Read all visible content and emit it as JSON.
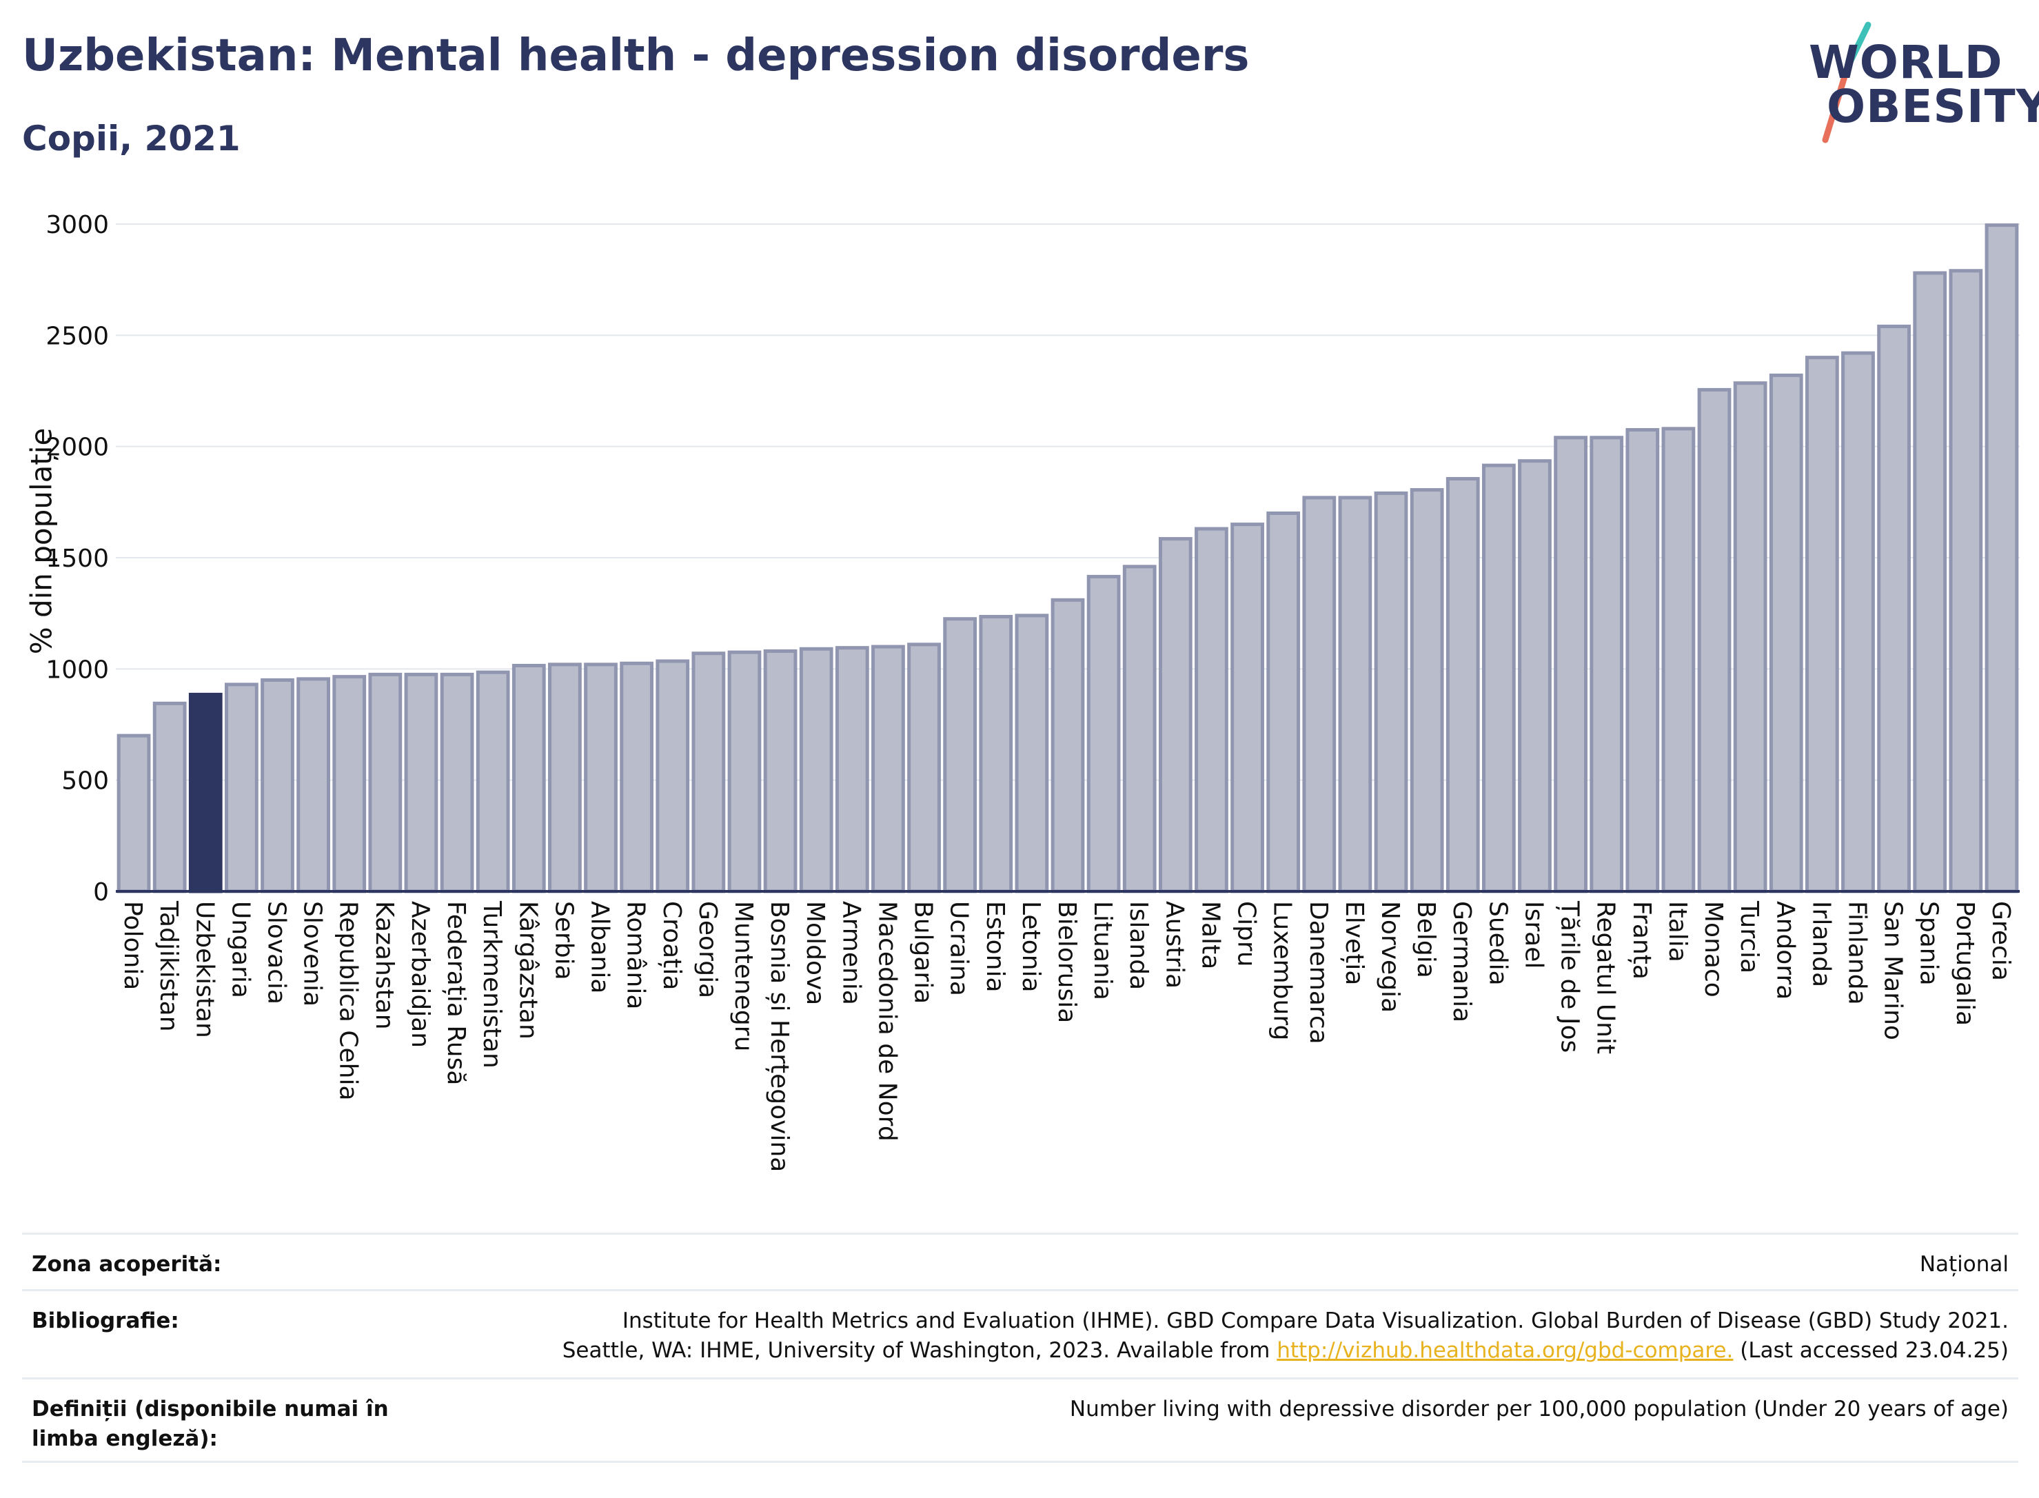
{
  "header": {
    "title": "Uzbekistan: Mental health - depression disorders",
    "subtitle": "Copii, 2021"
  },
  "logo": {
    "line1": "WORLD",
    "line2": "OBESITY",
    "colors": {
      "text": "#2d3561",
      "slash_top": "#3cc0b8",
      "slash_bottom": "#e8705a"
    }
  },
  "chart_data": {
    "type": "bar",
    "title": "",
    "xlabel": "",
    "ylabel": "% din populație",
    "ylim": [
      0,
      3000
    ],
    "yticks": [
      0,
      500,
      1000,
      1500,
      2000,
      2500,
      3000
    ],
    "grid": true,
    "highlight": "Uzbekistan",
    "colors": {
      "bar": "#b9bccb",
      "bar_edge": "#9095b0",
      "highlight": "#2d3561",
      "axis": "#2d3561",
      "grid": "#e4e7ec"
    },
    "categories": [
      "Polonia",
      "Tadjikistan",
      "Uzbekistan",
      "Ungaria",
      "Slovacia",
      "Slovenia",
      "Republica Cehia",
      "Kazahstan",
      "Azerbaidjan",
      "Federația Rusă",
      "Turkmenistan",
      "Kârgâzstan",
      "Serbia",
      "Albania",
      "România",
      "Croația",
      "Georgia",
      "Muntenegru",
      "Bosnia și Herțegovina",
      "Moldova",
      "Armenia",
      "Macedonia de Nord",
      "Bulgaria",
      "Ucraina",
      "Estonia",
      "Letonia",
      "Bielorusia",
      "Lituania",
      "Islanda",
      "Austria",
      "Malta",
      "Cipru",
      "Luxemburg",
      "Danemarca",
      "Elveția",
      "Norvegia",
      "Belgia",
      "Germania",
      "Suedia",
      "Israel",
      "Țările de Jos",
      "Regatul Unit",
      "Franța",
      "Italia",
      "Monaco",
      "Turcia",
      "Andorra",
      "Irlanda",
      "Finlanda",
      "San Marino",
      "Spania",
      "Portugalia",
      "Grecia"
    ],
    "values": [
      700,
      845,
      885,
      930,
      950,
      955,
      965,
      975,
      975,
      975,
      985,
      1015,
      1020,
      1020,
      1025,
      1035,
      1070,
      1075,
      1080,
      1090,
      1095,
      1100,
      1110,
      1225,
      1235,
      1240,
      1310,
      1415,
      1460,
      1585,
      1630,
      1650,
      1700,
      1770,
      1770,
      1790,
      1805,
      1855,
      1915,
      1935,
      2040,
      2040,
      2075,
      2080,
      2255,
      2285,
      2320,
      2400,
      2420,
      2540,
      2780,
      2790,
      2995
    ]
  },
  "metadata": {
    "coverage_label": "Zona acoperită:",
    "coverage_value": "Național",
    "bibliography_label": "Bibliografie:",
    "bibliography_line1": "Institute for Health Metrics and Evaluation (IHME). GBD Compare Data Visualization. Global Burden of Disease (GBD) Study 2021.",
    "bibliography_line2_pre": "Seattle, WA: IHME, University of Washington, 2023. Available from ",
    "bibliography_link": "http://vizhub.healthdata.org/gbd-compare.",
    "bibliography_line2_post": " (Last accessed 23.04.25)",
    "definitions_label": "Definiții (disponibile numai în limba engleză):",
    "definitions_value": "Number living with depressive disorder per 100,000 population (Under 20 years of age)"
  }
}
